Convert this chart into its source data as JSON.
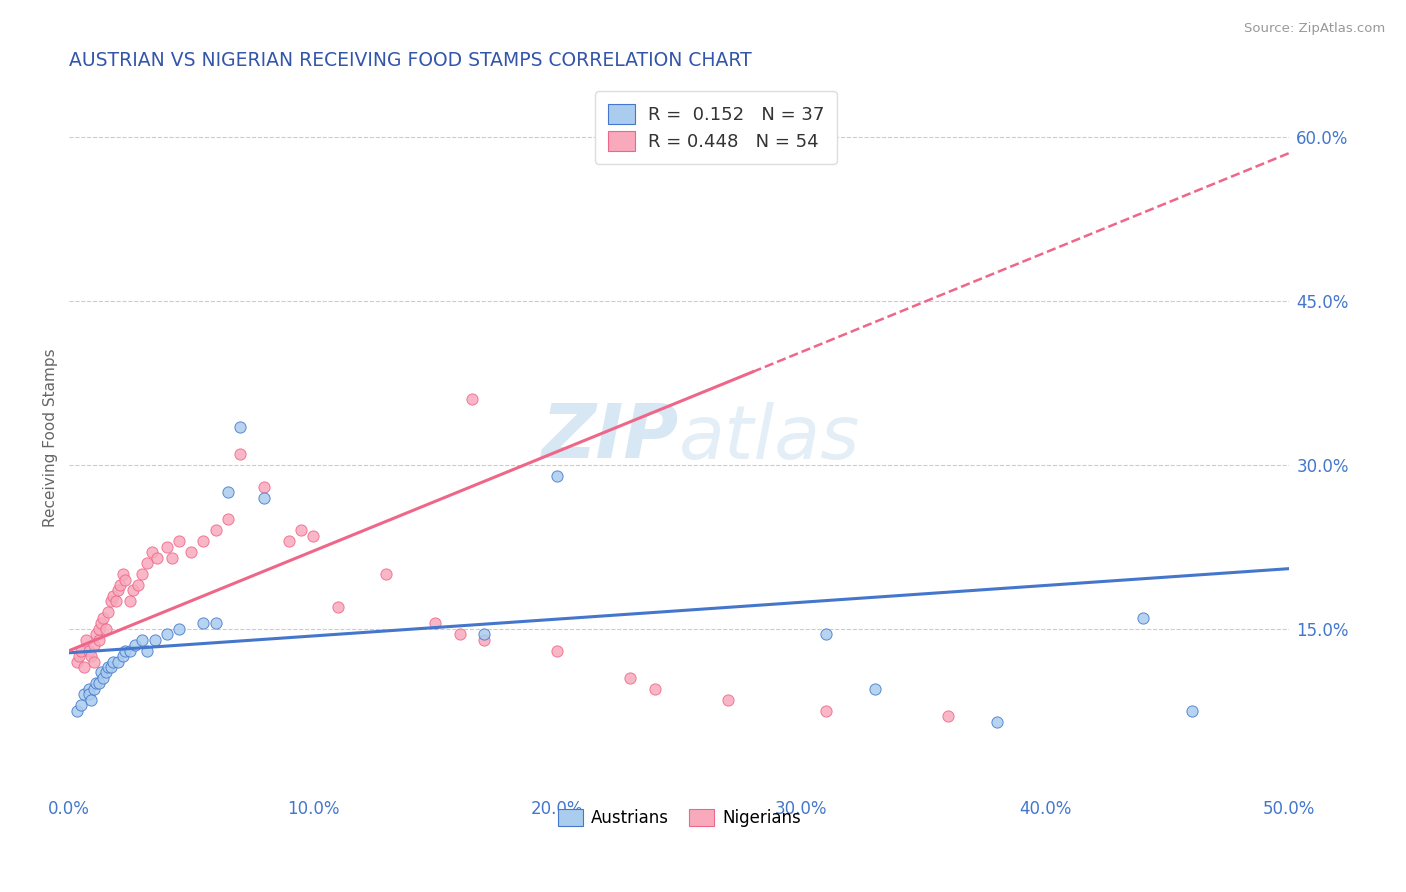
{
  "title": "AUSTRIAN VS NIGERIAN RECEIVING FOOD STAMPS CORRELATION CHART",
  "source": "Source: ZipAtlas.com",
  "ylabel": "Receiving Food Stamps",
  "xlim": [
    0.0,
    0.5
  ],
  "ylim": [
    0.0,
    0.65
  ],
  "xticks": [
    0.0,
    0.1,
    0.2,
    0.3,
    0.4,
    0.5
  ],
  "xticklabels": [
    "0.0%",
    "10.0%",
    "20.0%",
    "30.0%",
    "40.0%",
    "50.0%"
  ],
  "yticks_right": [
    0.15,
    0.3,
    0.45,
    0.6
  ],
  "yticklabels_right": [
    "15.0%",
    "30.0%",
    "45.0%",
    "60.0%"
  ],
  "watermark_zip": "ZIP",
  "watermark_atlas": "atlas",
  "legend_R_austrians": "0.152",
  "legend_N_austrians": "37",
  "legend_R_nigerians": "0.448",
  "legend_N_nigerians": "54",
  "color_austrians": "#aaccee",
  "color_nigerians": "#f8aabc",
  "line_color_austrians": "#4477cc",
  "line_color_nigerians": "#ee6688",
  "title_color": "#3355aa",
  "axis_label_color": "#666666",
  "tick_color": "#4477cc",
  "background_color": "#ffffff",
  "grid_color": "#cccccc",
  "austrians_x": [
    0.003,
    0.005,
    0.006,
    0.008,
    0.008,
    0.009,
    0.01,
    0.011,
    0.012,
    0.013,
    0.014,
    0.015,
    0.016,
    0.017,
    0.018,
    0.02,
    0.022,
    0.023,
    0.025,
    0.027,
    0.03,
    0.032,
    0.035,
    0.04,
    0.045,
    0.055,
    0.06,
    0.065,
    0.07,
    0.08,
    0.17,
    0.2,
    0.31,
    0.33,
    0.38,
    0.44,
    0.46
  ],
  "austrians_y": [
    0.075,
    0.08,
    0.09,
    0.095,
    0.09,
    0.085,
    0.095,
    0.1,
    0.1,
    0.11,
    0.105,
    0.11,
    0.115,
    0.115,
    0.12,
    0.12,
    0.125,
    0.13,
    0.13,
    0.135,
    0.14,
    0.13,
    0.14,
    0.145,
    0.15,
    0.155,
    0.155,
    0.275,
    0.335,
    0.27,
    0.145,
    0.29,
    0.145,
    0.095,
    0.065,
    0.16,
    0.075
  ],
  "nigerians_x": [
    0.003,
    0.004,
    0.005,
    0.006,
    0.007,
    0.008,
    0.009,
    0.01,
    0.01,
    0.011,
    0.012,
    0.012,
    0.013,
    0.014,
    0.015,
    0.016,
    0.017,
    0.018,
    0.019,
    0.02,
    0.021,
    0.022,
    0.023,
    0.025,
    0.026,
    0.028,
    0.03,
    0.032,
    0.034,
    0.036,
    0.04,
    0.042,
    0.045,
    0.05,
    0.055,
    0.06,
    0.065,
    0.07,
    0.08,
    0.09,
    0.095,
    0.1,
    0.11,
    0.13,
    0.15,
    0.16,
    0.165,
    0.17,
    0.2,
    0.23,
    0.24,
    0.27,
    0.31,
    0.36
  ],
  "nigerians_y": [
    0.12,
    0.125,
    0.13,
    0.115,
    0.14,
    0.13,
    0.125,
    0.12,
    0.135,
    0.145,
    0.14,
    0.15,
    0.155,
    0.16,
    0.15,
    0.165,
    0.175,
    0.18,
    0.175,
    0.185,
    0.19,
    0.2,
    0.195,
    0.175,
    0.185,
    0.19,
    0.2,
    0.21,
    0.22,
    0.215,
    0.225,
    0.215,
    0.23,
    0.22,
    0.23,
    0.24,
    0.25,
    0.31,
    0.28,
    0.23,
    0.24,
    0.235,
    0.17,
    0.2,
    0.155,
    0.145,
    0.36,
    0.14,
    0.13,
    0.105,
    0.095,
    0.085,
    0.075,
    0.07
  ],
  "nigerian_line_solid_end": 0.28,
  "austrian_line_start_y": 0.128,
  "austrian_line_end_y": 0.205,
  "nigerian_line_start_y": 0.13,
  "nigerian_line_end_y": 0.385
}
